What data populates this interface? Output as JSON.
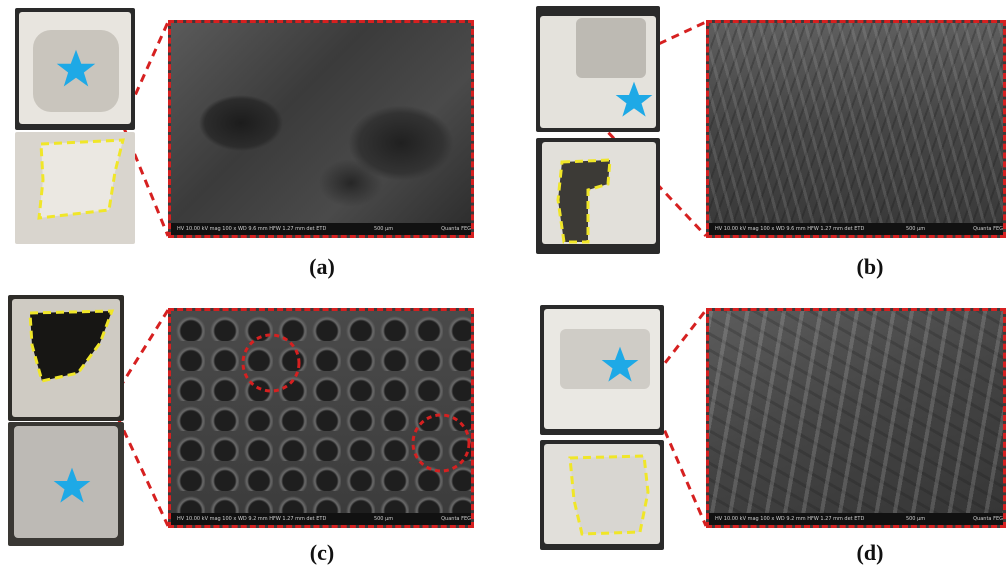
{
  "panels": [
    {
      "label": "(a)",
      "sem_scale": "500 μm",
      "sem_info": "HV 10.00 kV  mag 100 x  WD 9.6 mm  HFW 1.27 mm  det ETD",
      "sem_instrument": "Quanta FEG"
    },
    {
      "label": "(b)",
      "sem_scale": "500 μm",
      "sem_info": "HV 10.00 kV  mag 100 x  WD 9.6 mm  HFW 1.27 mm  det ETD",
      "sem_instrument": "Quanta FEG"
    },
    {
      "label": "(c)",
      "sem_scale": "500 μm",
      "sem_info": "HV 10.00 kV  mag 100 x  WD 9.2 mm  HFW 1.27 mm  det ETD",
      "sem_instrument": "Quanta FEG"
    },
    {
      "label": "(d)",
      "sem_scale": "500 μm",
      "sem_info": "HV 10.00 kV  mag 100 x  WD 9.2 mm  HFW 1.27 mm  det ETD",
      "sem_instrument": "Quanta FEG"
    }
  ],
  "colors": {
    "dash": "#d62020",
    "star": "#1ea9e6",
    "outline": "#f0e628"
  },
  "icons": [
    "star-icon",
    "yellow-outline",
    "red-circle"
  ]
}
